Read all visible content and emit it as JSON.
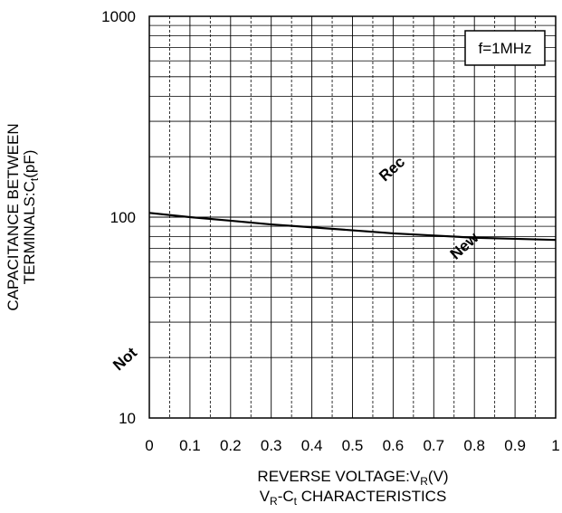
{
  "chart_data": {
    "type": "line",
    "title": [
      {
        "text": "V"
      },
      {
        "text": "R",
        "sub": true
      },
      {
        "text": "-C"
      },
      {
        "text": "t",
        "sub": true
      },
      {
        "text": " CHARACTERISTICS"
      }
    ],
    "x_label": [
      {
        "text": "REVERSE VOLTAGE:V"
      },
      {
        "text": "R",
        "sub": true
      },
      {
        "text": "(V)"
      }
    ],
    "y_label": [
      [
        {
          "text": "CAPACITANCE BETWEEN"
        }
      ],
      [
        {
          "text": "TERMINALS:C"
        },
        {
          "text": "t",
          "sub": true
        },
        {
          "text": "(pF)"
        }
      ]
    ],
    "annotation": "f=1MHz",
    "watermark": [
      "Not",
      "Rec",
      "New"
    ],
    "x": [
      0,
      0.1,
      0.2,
      0.3,
      0.4,
      0.5,
      0.6,
      0.7,
      0.8,
      0.9,
      1
    ],
    "series": [
      {
        "color": "#000000",
        "values": [
          105,
          100,
          96,
          92,
          89,
          86,
          83,
          81,
          79,
          78,
          77
        ]
      }
    ],
    "xlim": [
      0,
      1
    ],
    "xticks": [
      0,
      0.1,
      0.2,
      0.3,
      0.4,
      0.5,
      0.6,
      0.7,
      0.8,
      0.9,
      1
    ],
    "ylim": [
      10,
      1000
    ],
    "yticks": [
      10,
      100,
      1000
    ],
    "log_y": true,
    "grid": true
  }
}
